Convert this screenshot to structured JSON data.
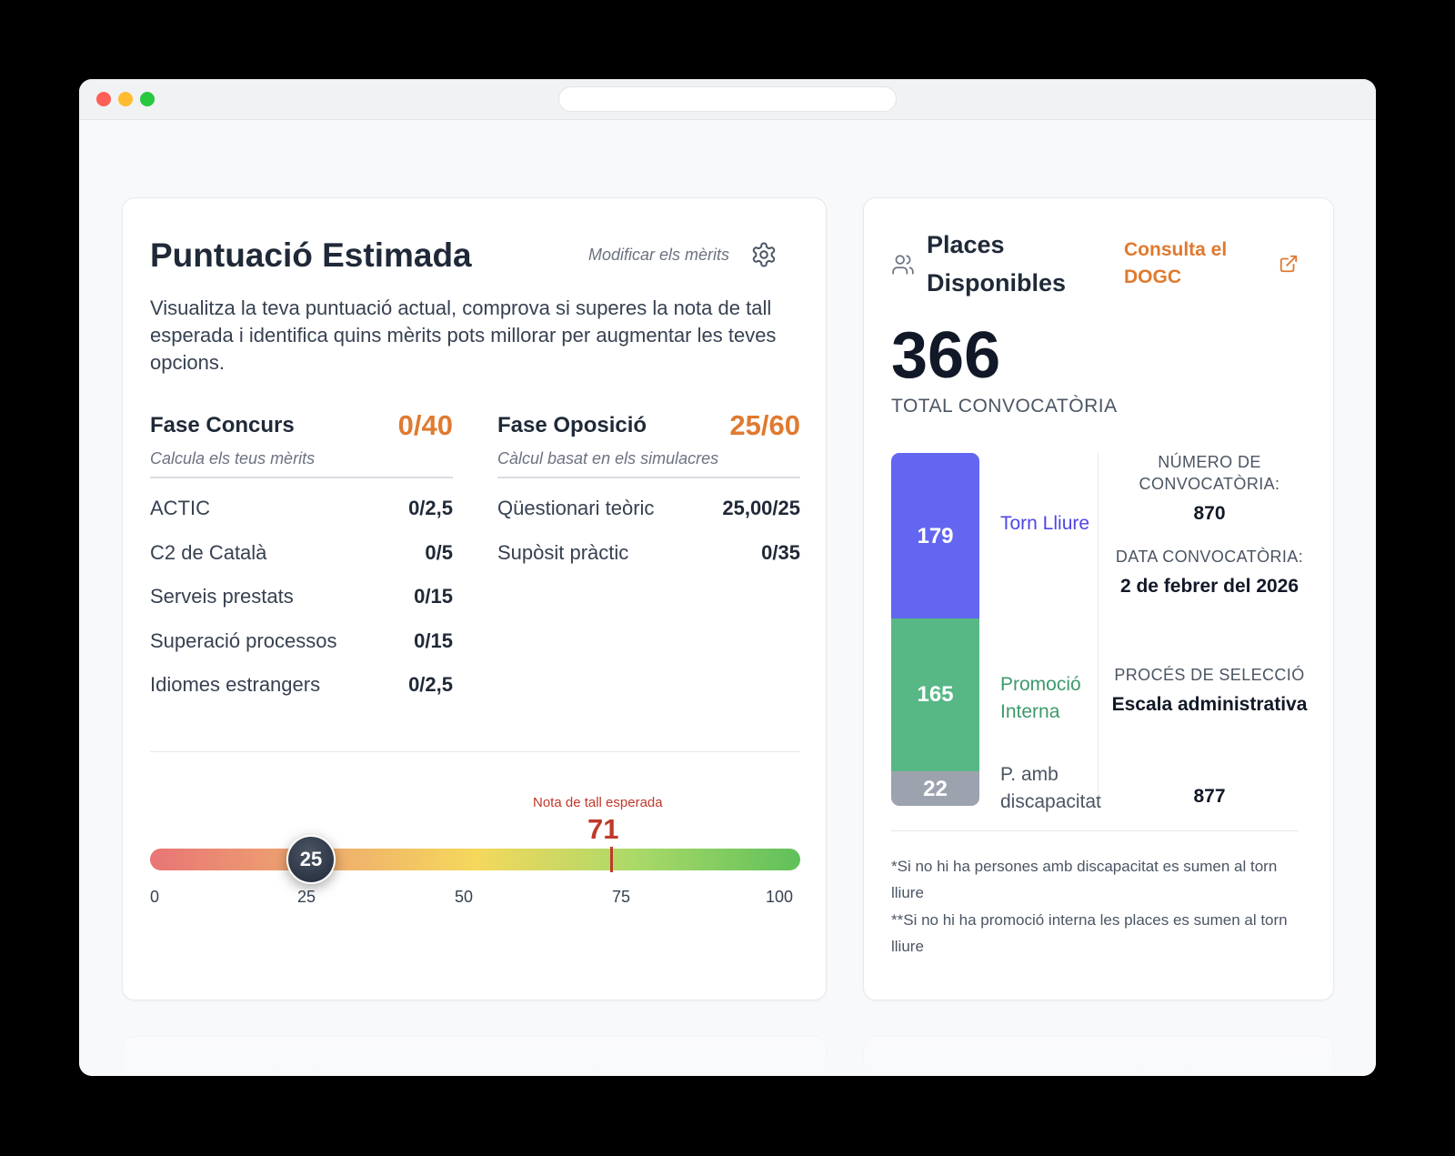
{
  "score_card": {
    "title": "Puntuació Estimada",
    "modify_label": "Modificar els mèrits",
    "description": "Visualitza la teva puntuació actual, comprova si superes la nota de tall esperada i identifica quins mèrits pots millorar per augmentar les teves opcions.",
    "concurs": {
      "name": "Fase Concurs",
      "score": "0/40",
      "subtitle": "Calcula els teus mèrits",
      "rows": [
        {
          "label": "ACTIC",
          "value": "0/2,5"
        },
        {
          "label": "C2 de Català",
          "value": "0/5"
        },
        {
          "label": "Serveis prestats",
          "value": "0/15"
        },
        {
          "label": "Superació processos",
          "value": "0/15"
        },
        {
          "label": "Idiomes estrangers",
          "value": "0/2,5"
        }
      ]
    },
    "oposicio": {
      "name": "Fase Oposició",
      "score": "25/60",
      "subtitle": "Càlcul basat en els simulacres",
      "rows": [
        {
          "label": "Qüestionari teòric",
          "value": "25,00/25"
        },
        {
          "label": "Supòsit pràctic",
          "value": "0/35"
        }
      ]
    },
    "scale": {
      "current": "25",
      "cut_label": "Nota de tall esperada",
      "cut_value": "71",
      "ticks": [
        "0",
        "25",
        "50",
        "75",
        "100"
      ],
      "colors": {
        "cut": "#c0392b",
        "knob": "#1f2937"
      }
    }
  },
  "places_card": {
    "title": "Places Disponibles",
    "link_label": "Consulta el DOGC",
    "total": "366",
    "total_label": "TOTAL CONVOCATÒRIA",
    "segments": [
      {
        "label": "Torn Lliure",
        "value": "179",
        "color": "#6366f1"
      },
      {
        "label": "Promoció Interna",
        "value": "165",
        "color": "#57b886"
      },
      {
        "label": "P. amb discapacitat",
        "value": "22",
        "color": "#9ca3af"
      }
    ],
    "info": {
      "num_label": "NÚMERO DE CONVOCATÒRIA:",
      "num_value": "870",
      "date_label": "DATA CONVOCATÒRIA:",
      "date_value": "2 de febrer del 2026",
      "process_label": "PROCÉS DE SELECCIÓ",
      "process_value": "Escala administrativa",
      "process_code": "877"
    },
    "notes": [
      "*Si no hi ha persones amb discapacitat es sumen al torn lliure",
      "**Si no hi ha promoció interna les places es sumen al torn lliure"
    ]
  },
  "colors": {
    "accent": "#e07a2f"
  }
}
